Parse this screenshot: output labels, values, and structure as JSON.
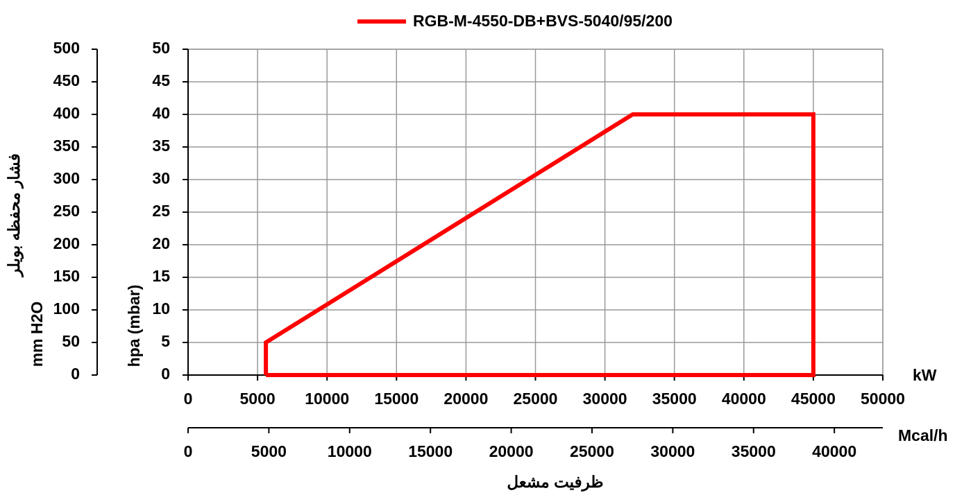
{
  "chart_data": {
    "type": "line",
    "x": [
      5600,
      5600,
      32000,
      45000,
      45000,
      5600
    ],
    "series": [
      {
        "name": "RGB-M-4550-DB+BVS-5040/95/200",
        "color": "#ff0000",
        "values": [
          0,
          5,
          40,
          40,
          0,
          0
        ]
      }
    ],
    "xlim": [
      0,
      50000
    ],
    "xticks": [
      0,
      5000,
      10000,
      15000,
      20000,
      25000,
      30000,
      35000,
      40000,
      45000,
      50000
    ],
    "x_unit": "kW",
    "x2lim": [
      0,
      43000
    ],
    "x2ticks": [
      0,
      5000,
      10000,
      15000,
      20000,
      25000,
      30000,
      35000,
      40000
    ],
    "x2_unit": "Mcal/h",
    "xlabel": "ظرفیت مشعل",
    "ylim": [
      0,
      50
    ],
    "yticks": [
      0,
      5,
      10,
      15,
      20,
      25,
      30,
      35,
      40,
      45,
      50
    ],
    "ylabel": "hpa (mbar)",
    "y2lim": [
      0,
      500
    ],
    "y2ticks": [
      0,
      50,
      100,
      150,
      200,
      250,
      300,
      350,
      400,
      450,
      500
    ],
    "y2label": "mm H2O",
    "y2title": "فشار محفظه بویلر",
    "grid": true,
    "legend": "top"
  }
}
